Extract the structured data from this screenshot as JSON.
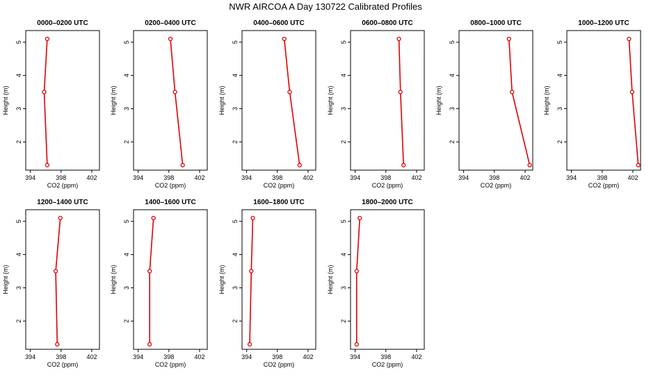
{
  "figure": {
    "title": "NWR AIRCOA A  Day 130722  Calibrated Profiles"
  },
  "style": {
    "line_color": "#e00000",
    "marker_color": "#e00000",
    "axis_color": "#000000"
  },
  "chart_data": [
    {
      "type": "line",
      "title": "0000–0200 UTC",
      "xlabel": "CO2 (ppm)",
      "ylabel": "Height (m)",
      "xlim": [
        393.4,
        403.0
      ],
      "ylim": [
        1.15,
        5.35
      ],
      "xticks": [
        "394",
        "398",
        "402"
      ],
      "yticks": [
        "2",
        "3",
        "4",
        "5"
      ],
      "series": [
        {
          "x": [
            396.2,
            395.8,
            396.2
          ],
          "y": [
            5.1,
            3.5,
            1.3
          ]
        }
      ]
    },
    {
      "type": "line",
      "title": "0200–0400 UTC",
      "xlabel": "CO2 (ppm)",
      "ylabel": "Height (m)",
      "xlim": [
        393.4,
        403.0
      ],
      "ylim": [
        1.15,
        5.35
      ],
      "xticks": [
        "394",
        "398",
        "402"
      ],
      "yticks": [
        "2",
        "3",
        "4",
        "5"
      ],
      "series": [
        {
          "x": [
            398.2,
            398.8,
            399.8
          ],
          "y": [
            5.1,
            3.5,
            1.3
          ]
        }
      ]
    },
    {
      "type": "line",
      "title": "0400–0600 UTC",
      "xlabel": "CO2 (ppm)",
      "ylabel": "Height (m)",
      "xlim": [
        393.4,
        403.0
      ],
      "ylim": [
        1.15,
        5.35
      ],
      "xticks": [
        "394",
        "398",
        "402"
      ],
      "yticks": [
        "2",
        "3",
        "4",
        "5"
      ],
      "series": [
        {
          "x": [
            398.9,
            399.6,
            400.9
          ],
          "y": [
            5.1,
            3.5,
            1.3
          ]
        }
      ]
    },
    {
      "type": "line",
      "title": "0600–0800 UTC",
      "xlabel": "CO2 (ppm)",
      "ylabel": "Height (m)",
      "xlim": [
        393.4,
        403.0
      ],
      "ylim": [
        1.15,
        5.35
      ],
      "xticks": [
        "394",
        "398",
        "402"
      ],
      "yticks": [
        "2",
        "3",
        "4",
        "5"
      ],
      "series": [
        {
          "x": [
            399.7,
            399.9,
            400.3
          ],
          "y": [
            5.1,
            3.5,
            1.3
          ]
        }
      ]
    },
    {
      "type": "line",
      "title": "0800–1000 UTC",
      "xlabel": "CO2 (ppm)",
      "ylabel": "Height (m)",
      "xlim": [
        393.4,
        403.0
      ],
      "ylim": [
        1.15,
        5.35
      ],
      "xticks": [
        "394",
        "398",
        "402"
      ],
      "yticks": [
        "2",
        "3",
        "4",
        "5"
      ],
      "series": [
        {
          "x": [
            399.9,
            400.3,
            402.6
          ],
          "y": [
            5.1,
            3.5,
            1.3
          ]
        }
      ]
    },
    {
      "type": "line",
      "title": "1000–1200 UTC",
      "xlabel": "CO2 (ppm)",
      "ylabel": "Height (m)",
      "xlim": [
        393.4,
        403.0
      ],
      "ylim": [
        1.15,
        5.35
      ],
      "xticks": [
        "394",
        "398",
        "402"
      ],
      "yticks": [
        "2",
        "3",
        "4",
        "5"
      ],
      "series": [
        {
          "x": [
            401.5,
            401.9,
            402.7
          ],
          "y": [
            5.1,
            3.5,
            1.3
          ]
        }
      ]
    },
    {
      "type": "line",
      "title": "1200–1400 UTC",
      "xlabel": "CO2 (ppm)",
      "ylabel": "Height (m)",
      "xlim": [
        393.4,
        403.0
      ],
      "ylim": [
        1.15,
        5.35
      ],
      "xticks": [
        "394",
        "398",
        "402"
      ],
      "yticks": [
        "2",
        "3",
        "4",
        "5"
      ],
      "series": [
        {
          "x": [
            397.9,
            397.3,
            397.5
          ],
          "y": [
            5.1,
            3.5,
            1.3
          ]
        }
      ]
    },
    {
      "type": "line",
      "title": "1400–1600 UTC",
      "xlabel": "CO2 (ppm)",
      "ylabel": "Height (m)",
      "xlim": [
        393.4,
        403.0
      ],
      "ylim": [
        1.15,
        5.35
      ],
      "xticks": [
        "394",
        "398",
        "402"
      ],
      "yticks": [
        "2",
        "3",
        "4",
        "5"
      ],
      "series": [
        {
          "x": [
            396.0,
            395.5,
            395.5
          ],
          "y": [
            5.1,
            3.5,
            1.3
          ]
        }
      ]
    },
    {
      "type": "line",
      "title": "1600–1800 UTC",
      "xlabel": "CO2 (ppm)",
      "ylabel": "Height (m)",
      "xlim": [
        393.4,
        403.0
      ],
      "ylim": [
        1.15,
        5.35
      ],
      "xticks": [
        "394",
        "398",
        "402"
      ],
      "yticks": [
        "2",
        "3",
        "4",
        "5"
      ],
      "series": [
        {
          "x": [
            394.8,
            394.6,
            394.4
          ],
          "y": [
            5.1,
            3.5,
            1.3
          ]
        }
      ]
    },
    {
      "type": "line",
      "title": "1800–2000 UTC",
      "xlabel": "CO2 (ppm)",
      "ylabel": "Height (m)",
      "xlim": [
        393.4,
        403.0
      ],
      "ylim": [
        1.15,
        5.35
      ],
      "xticks": [
        "394",
        "398",
        "402"
      ],
      "yticks": [
        "2",
        "3",
        "4",
        "5"
      ],
      "series": [
        {
          "x": [
            394.6,
            394.2,
            394.2
          ],
          "y": [
            5.1,
            3.5,
            1.3
          ]
        }
      ]
    }
  ]
}
